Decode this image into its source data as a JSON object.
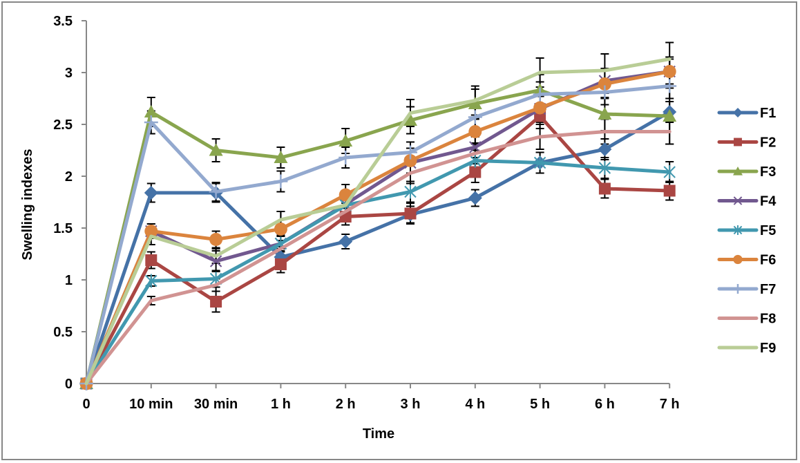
{
  "chart_data": {
    "type": "line",
    "title": "",
    "xlabel": "Time",
    "ylabel": "Swelling indexes",
    "ylim": [
      0,
      3.5
    ],
    "yticks": [
      "0",
      "0.5",
      "1",
      "1.5",
      "2",
      "2.5",
      "3",
      "3.5"
    ],
    "ytick_values": [
      0,
      0.5,
      1,
      1.5,
      2,
      2.5,
      3,
      3.5
    ],
    "categories": [
      "0",
      "10 min",
      "30 min",
      "1 h",
      "2 h",
      "3 h",
      "4 h",
      "5 h",
      "6 h",
      "7 h"
    ],
    "grid": false,
    "legend_position": "right",
    "error_bars": true,
    "series": [
      {
        "name": "F1",
        "color": "#4572A7",
        "marker": "diamond",
        "values": [
          0,
          1.84,
          1.84,
          1.22,
          1.37,
          1.63,
          1.79,
          2.13,
          2.26,
          2.62
        ],
        "errors": [
          0,
          0.09,
          0.09,
          0.08,
          0.07,
          0.08,
          0.08,
          0.1,
          0.1,
          0.1
        ]
      },
      {
        "name": "F2",
        "color": "#AA4643",
        "marker": "square",
        "values": [
          0,
          1.19,
          0.79,
          1.15,
          1.61,
          1.64,
          2.04,
          2.58,
          1.88,
          1.86
        ],
        "errors": [
          0,
          0.08,
          0.1,
          0.08,
          0.08,
          0.1,
          0.1,
          0.12,
          0.09,
          0.09
        ]
      },
      {
        "name": "F3",
        "color": "#89A54E",
        "marker": "triangle",
        "values": [
          0,
          2.62,
          2.25,
          2.18,
          2.34,
          2.54,
          2.7,
          2.83,
          2.6,
          2.58
        ],
        "errors": [
          0,
          0.14,
          0.11,
          0.1,
          0.12,
          0.13,
          0.14,
          0.15,
          0.16,
          0.27
        ]
      },
      {
        "name": "F4",
        "color": "#71588F",
        "marker": "x",
        "values": [
          0,
          1.47,
          1.18,
          1.35,
          1.73,
          2.13,
          2.28,
          2.65,
          2.92,
          3.01
        ],
        "errors": [
          0,
          0.07,
          0.1,
          0.08,
          0.1,
          0.1,
          0.1,
          0.12,
          0.12,
          0.12
        ]
      },
      {
        "name": "F5",
        "color": "#4198AF",
        "marker": "star",
        "values": [
          0,
          0.99,
          1.01,
          1.35,
          1.72,
          1.85,
          2.15,
          2.13,
          2.08,
          2.04
        ],
        "errors": [
          0,
          0.05,
          0.08,
          0.07,
          0.08,
          0.1,
          0.1,
          0.1,
          0.1,
          0.1
        ]
      },
      {
        "name": "F6",
        "color": "#DB843D",
        "marker": "circle",
        "values": [
          0,
          1.47,
          1.39,
          1.49,
          1.82,
          2.15,
          2.43,
          2.66,
          2.89,
          3.01
        ],
        "errors": [
          0,
          0.07,
          0.08,
          0.17,
          0.1,
          0.12,
          0.12,
          0.14,
          0.14,
          0.14
        ]
      },
      {
        "name": "F7",
        "color": "#93A9CF",
        "marker": "plus",
        "values": [
          0,
          2.52,
          1.85,
          1.95,
          2.18,
          2.23,
          2.57,
          2.79,
          2.81,
          2.87
        ],
        "errors": [
          0,
          0.11,
          0.09,
          0.1,
          0.1,
          0.1,
          0.12,
          0.12,
          0.12,
          0.12
        ]
      },
      {
        "name": "F8",
        "color": "#D19392",
        "marker": "none",
        "values": [
          0,
          0.8,
          0.95,
          1.3,
          1.66,
          2.03,
          2.22,
          2.38,
          2.43,
          2.43
        ],
        "errors": [
          0,
          0.04,
          0.06,
          0.08,
          0.08,
          0.1,
          0.1,
          0.12,
          0.12,
          0.12
        ]
      },
      {
        "name": "F9",
        "color": "#B9CD96",
        "marker": "none",
        "values": [
          0,
          1.42,
          1.23,
          1.58,
          1.72,
          2.61,
          2.73,
          3.0,
          3.02,
          3.13
        ],
        "errors": [
          0,
          0.08,
          0.07,
          0.08,
          0.08,
          0.13,
          0.14,
          0.14,
          0.16,
          0.16
        ]
      }
    ]
  }
}
